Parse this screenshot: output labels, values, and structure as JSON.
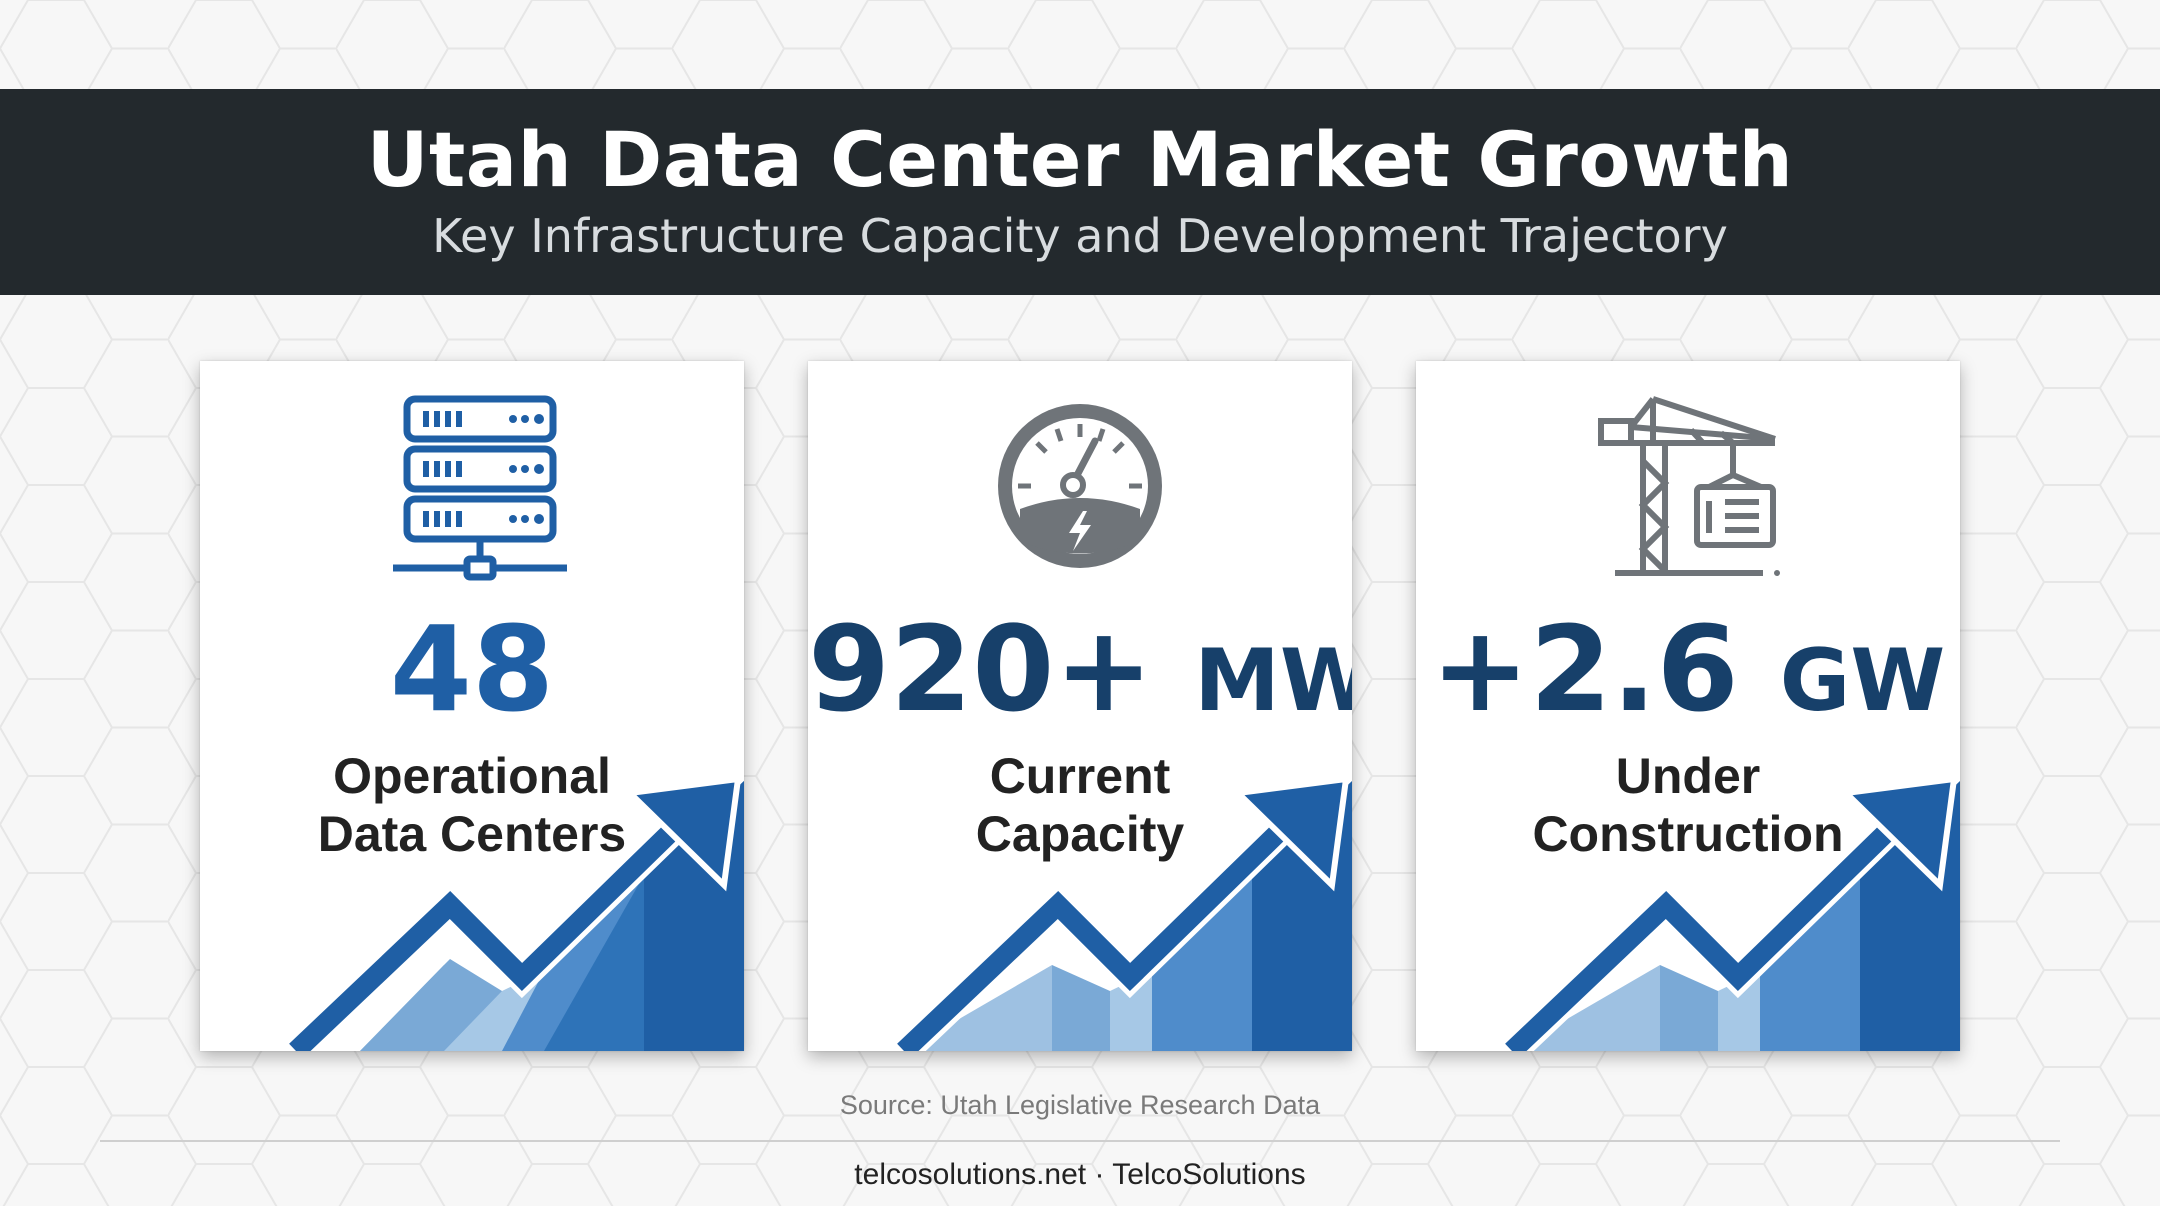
{
  "header": {
    "title": "Utah Data Center Market Growth",
    "subtitle": "Key Infrastructure Capacity and Development Trajectory"
  },
  "cards": [
    {
      "icon": "server-rack-icon",
      "value": "48",
      "unit": "",
      "label_lines": [
        "Operational",
        "Data Centers"
      ]
    },
    {
      "icon": "speedometer-icon",
      "value": "920+",
      "unit": "MW",
      "label_lines": [
        "Current",
        "Capacity"
      ]
    },
    {
      "icon": "construction-crane-icon",
      "value": "+2.6",
      "unit": "GW",
      "label_lines": [
        "Under",
        "Construction"
      ]
    }
  ],
  "source": "Source: Utah Legislative Research Data",
  "footer": "telcosolutions.net · TelcoSolutions",
  "colors": {
    "banner": "#23292d",
    "accent_blue": "#1f5fa5",
    "navy": "#17406a",
    "icon_gray": "#6f7479"
  }
}
